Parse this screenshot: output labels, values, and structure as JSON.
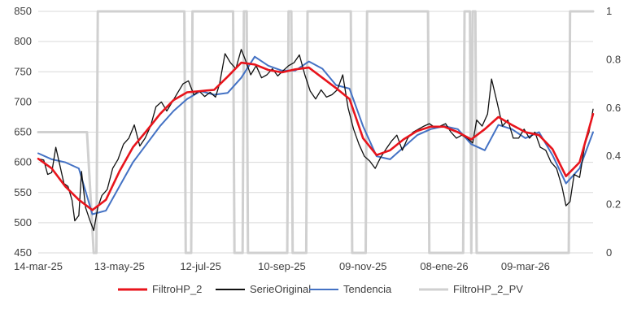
{
  "chart_data": {
    "type": "line",
    "title": "",
    "xlabel": "",
    "ylabel": "",
    "x_ticks": [
      "14-mar-25",
      "13-may-25",
      "12-jul-25",
      "10-sep-25",
      "09-nov-25",
      "08-ene-26",
      "09-mar-26"
    ],
    "ylim": [
      450,
      850
    ],
    "y_ticks": [
      "450",
      "500",
      "550",
      "600",
      "650",
      "700",
      "750",
      "800",
      "850"
    ],
    "y2lim": [
      0,
      1
    ],
    "y2_ticks": [
      "0",
      "0.2",
      "0.4",
      "0.6",
      "0.8",
      "1"
    ],
    "x_range": [
      "2025-03-14",
      "2026-04-28"
    ],
    "grid": true,
    "legend_position": "bottom",
    "series": [
      {
        "name": "FiltroHP_2",
        "axis": "left",
        "color": "#e8141c",
        "points": [
          [
            "2025-03-14",
            606
          ],
          [
            "2025-03-24",
            590
          ],
          [
            "2025-04-03",
            560
          ],
          [
            "2025-04-13",
            538
          ],
          [
            "2025-04-23",
            521
          ],
          [
            "2025-05-03",
            538
          ],
          [
            "2025-05-13",
            585
          ],
          [
            "2025-05-23",
            625
          ],
          [
            "2025-06-02",
            652
          ],
          [
            "2025-06-12",
            680
          ],
          [
            "2025-06-22",
            703
          ],
          [
            "2025-07-02",
            716
          ],
          [
            "2025-07-12",
            718
          ],
          [
            "2025-07-22",
            720
          ],
          [
            "2025-08-01",
            742
          ],
          [
            "2025-08-11",
            765
          ],
          [
            "2025-08-21",
            762
          ],
          [
            "2025-08-31",
            753
          ],
          [
            "2025-09-10",
            749
          ],
          [
            "2025-09-20",
            754
          ],
          [
            "2025-09-30",
            757
          ],
          [
            "2025-10-10",
            740
          ],
          [
            "2025-10-20",
            723
          ],
          [
            "2025-10-30",
            705
          ],
          [
            "2025-11-09",
            640
          ],
          [
            "2025-11-19",
            612
          ],
          [
            "2025-11-29",
            620
          ],
          [
            "2025-12-09",
            638
          ],
          [
            "2025-12-19",
            652
          ],
          [
            "2025-12-29",
            659
          ],
          [
            "2026-01-08",
            659
          ],
          [
            "2026-01-18",
            650
          ],
          [
            "2026-01-28",
            638
          ],
          [
            "2026-02-07",
            655
          ],
          [
            "2026-02-17",
            675
          ],
          [
            "2026-02-27",
            662
          ],
          [
            "2026-03-09",
            650
          ],
          [
            "2026-03-19",
            645
          ],
          [
            "2026-03-29",
            622
          ],
          [
            "2026-04-08",
            577
          ],
          [
            "2026-04-18",
            600
          ],
          [
            "2026-04-28",
            680
          ]
        ]
      },
      {
        "name": "SerieOriginal",
        "axis": "left",
        "color": "#111111",
        "points": [
          [
            "2025-03-14",
            606
          ],
          [
            "2025-03-18",
            604
          ],
          [
            "2025-03-21",
            580
          ],
          [
            "2025-03-24",
            583
          ],
          [
            "2025-03-27",
            625
          ],
          [
            "2025-03-30",
            595
          ],
          [
            "2025-04-02",
            565
          ],
          [
            "2025-04-05",
            560
          ],
          [
            "2025-04-08",
            537
          ],
          [
            "2025-04-10",
            503
          ],
          [
            "2025-04-13",
            512
          ],
          [
            "2025-04-15",
            585
          ],
          [
            "2025-04-18",
            525
          ],
          [
            "2025-04-21",
            505
          ],
          [
            "2025-04-24",
            487
          ],
          [
            "2025-04-27",
            525
          ],
          [
            "2025-04-30",
            545
          ],
          [
            "2025-05-04",
            555
          ],
          [
            "2025-05-08",
            590
          ],
          [
            "2025-05-12",
            605
          ],
          [
            "2025-05-16",
            630
          ],
          [
            "2025-05-20",
            640
          ],
          [
            "2025-05-24",
            662
          ],
          [
            "2025-05-28",
            627
          ],
          [
            "2025-06-01",
            640
          ],
          [
            "2025-06-05",
            660
          ],
          [
            "2025-06-09",
            692
          ],
          [
            "2025-06-13",
            700
          ],
          [
            "2025-06-17",
            685
          ],
          [
            "2025-06-21",
            700
          ],
          [
            "2025-06-25",
            715
          ],
          [
            "2025-06-29",
            730
          ],
          [
            "2025-07-03",
            735
          ],
          [
            "2025-07-07",
            712
          ],
          [
            "2025-07-11",
            718
          ],
          [
            "2025-07-15",
            709
          ],
          [
            "2025-07-19",
            716
          ],
          [
            "2025-07-23",
            708
          ],
          [
            "2025-07-26",
            730
          ],
          [
            "2025-07-30",
            780
          ],
          [
            "2025-08-03",
            765
          ],
          [
            "2025-08-07",
            755
          ],
          [
            "2025-08-11",
            787
          ],
          [
            "2025-08-14",
            770
          ],
          [
            "2025-08-18",
            745
          ],
          [
            "2025-08-22",
            760
          ],
          [
            "2025-08-26",
            740
          ],
          [
            "2025-08-30",
            745
          ],
          [
            "2025-09-03",
            755
          ],
          [
            "2025-09-07",
            743
          ],
          [
            "2025-09-11",
            752
          ],
          [
            "2025-09-15",
            760
          ],
          [
            "2025-09-19",
            765
          ],
          [
            "2025-09-23",
            778
          ],
          [
            "2025-09-27",
            745
          ],
          [
            "2025-10-01",
            718
          ],
          [
            "2025-10-05",
            705
          ],
          [
            "2025-10-09",
            720
          ],
          [
            "2025-10-13",
            708
          ],
          [
            "2025-10-17",
            712
          ],
          [
            "2025-10-21",
            720
          ],
          [
            "2025-10-25",
            745
          ],
          [
            "2025-10-29",
            690
          ],
          [
            "2025-11-02",
            655
          ],
          [
            "2025-11-06",
            630
          ],
          [
            "2025-11-10",
            610
          ],
          [
            "2025-11-14",
            602
          ],
          [
            "2025-11-18",
            590
          ],
          [
            "2025-11-22",
            608
          ],
          [
            "2025-11-26",
            622
          ],
          [
            "2025-11-30",
            635
          ],
          [
            "2025-12-04",
            645
          ],
          [
            "2025-12-08",
            620
          ],
          [
            "2025-12-12",
            640
          ],
          [
            "2025-12-16",
            650
          ],
          [
            "2025-12-20",
            655
          ],
          [
            "2025-12-24",
            660
          ],
          [
            "2025-12-28",
            664
          ],
          [
            "2026-01-01",
            658
          ],
          [
            "2026-01-05",
            660
          ],
          [
            "2026-01-09",
            664
          ],
          [
            "2026-01-13",
            650
          ],
          [
            "2026-01-17",
            640
          ],
          [
            "2026-01-21",
            645
          ],
          [
            "2026-01-25",
            640
          ],
          [
            "2026-01-29",
            632
          ],
          [
            "2026-02-01",
            670
          ],
          [
            "2026-02-05",
            660
          ],
          [
            "2026-02-09",
            680
          ],
          [
            "2026-02-12",
            738
          ],
          [
            "2026-02-16",
            700
          ],
          [
            "2026-02-20",
            660
          ],
          [
            "2026-02-24",
            670
          ],
          [
            "2026-02-28",
            640
          ],
          [
            "2026-03-04",
            640
          ],
          [
            "2026-03-08",
            655
          ],
          [
            "2026-03-12",
            640
          ],
          [
            "2026-03-16",
            650
          ],
          [
            "2026-03-20",
            625
          ],
          [
            "2026-03-24",
            620
          ],
          [
            "2026-03-28",
            600
          ],
          [
            "2026-04-01",
            590
          ],
          [
            "2026-04-05",
            560
          ],
          [
            "2026-04-08",
            528
          ],
          [
            "2026-04-11",
            535
          ],
          [
            "2026-04-14",
            580
          ],
          [
            "2026-04-18",
            575
          ],
          [
            "2026-04-22",
            630
          ],
          [
            "2026-04-25",
            650
          ],
          [
            "2026-04-28",
            688
          ]
        ]
      },
      {
        "name": "Tendencia",
        "axis": "left",
        "color": "#4472c4",
        "points": [
          [
            "2025-03-14",
            615
          ],
          [
            "2025-03-24",
            605
          ],
          [
            "2025-04-03",
            600
          ],
          [
            "2025-04-13",
            590
          ],
          [
            "2025-04-23",
            514
          ],
          [
            "2025-05-03",
            520
          ],
          [
            "2025-05-13",
            560
          ],
          [
            "2025-05-23",
            600
          ],
          [
            "2025-06-02",
            630
          ],
          [
            "2025-06-12",
            660
          ],
          [
            "2025-06-22",
            685
          ],
          [
            "2025-07-02",
            705
          ],
          [
            "2025-07-12",
            718
          ],
          [
            "2025-07-22",
            712
          ],
          [
            "2025-08-01",
            715
          ],
          [
            "2025-08-11",
            740
          ],
          [
            "2025-08-21",
            775
          ],
          [
            "2025-08-31",
            760
          ],
          [
            "2025-09-10",
            752
          ],
          [
            "2025-09-20",
            752
          ],
          [
            "2025-09-30",
            767
          ],
          [
            "2025-10-10",
            755
          ],
          [
            "2025-10-20",
            728
          ],
          [
            "2025-10-30",
            722
          ],
          [
            "2025-11-09",
            660
          ],
          [
            "2025-11-19",
            610
          ],
          [
            "2025-11-29",
            605
          ],
          [
            "2025-12-09",
            625
          ],
          [
            "2025-12-19",
            645
          ],
          [
            "2025-12-29",
            655
          ],
          [
            "2026-01-08",
            660
          ],
          [
            "2026-01-18",
            655
          ],
          [
            "2026-01-28",
            630
          ],
          [
            "2026-02-07",
            620
          ],
          [
            "2026-02-17",
            662
          ],
          [
            "2026-02-27",
            655
          ],
          [
            "2026-03-09",
            640
          ],
          [
            "2026-03-19",
            650
          ],
          [
            "2026-03-29",
            612
          ],
          [
            "2026-04-08",
            565
          ],
          [
            "2026-04-18",
            590
          ],
          [
            "2026-04-28",
            650
          ]
        ]
      },
      {
        "name": "FiltroHP_2_PV",
        "axis": "right",
        "color": "#d0d0d0",
        "points": [
          [
            "2025-03-14",
            0.5
          ],
          [
            "2025-03-28",
            0.5
          ],
          [
            "2025-04-05",
            0.5
          ],
          [
            "2025-04-19",
            0.5
          ],
          [
            "2025-04-24",
            0
          ],
          [
            "2025-04-26",
            0
          ],
          [
            "2025-04-27",
            1
          ],
          [
            "2025-06-30",
            1
          ],
          [
            "2025-07-01",
            0
          ],
          [
            "2025-07-05",
            0
          ],
          [
            "2025-07-06",
            1
          ],
          [
            "2025-08-05",
            1
          ],
          [
            "2025-08-06",
            0
          ],
          [
            "2025-08-12",
            0
          ],
          [
            "2025-08-13",
            1
          ],
          [
            "2025-08-15",
            1
          ],
          [
            "2025-08-16",
            0
          ],
          [
            "2025-09-14",
            0
          ],
          [
            "2025-09-15",
            1
          ],
          [
            "2025-09-17",
            1
          ],
          [
            "2025-09-18",
            0
          ],
          [
            "2025-09-28",
            0
          ],
          [
            "2025-09-29",
            1
          ],
          [
            "2025-10-31",
            1
          ],
          [
            "2025-11-01",
            0
          ],
          [
            "2025-11-11",
            0
          ],
          [
            "2025-11-12",
            1
          ],
          [
            "2025-12-27",
            1
          ],
          [
            "2025-12-28",
            0
          ],
          [
            "2026-01-22",
            0
          ],
          [
            "2026-01-23",
            1
          ],
          [
            "2026-01-27",
            1
          ],
          [
            "2026-01-28",
            0
          ],
          [
            "2026-01-29",
            1
          ],
          [
            "2026-01-31",
            1
          ],
          [
            "2026-02-01",
            0
          ],
          [
            "2026-04-10",
            0
          ],
          [
            "2026-04-11",
            1
          ],
          [
            "2026-04-28",
            1
          ]
        ]
      }
    ]
  }
}
